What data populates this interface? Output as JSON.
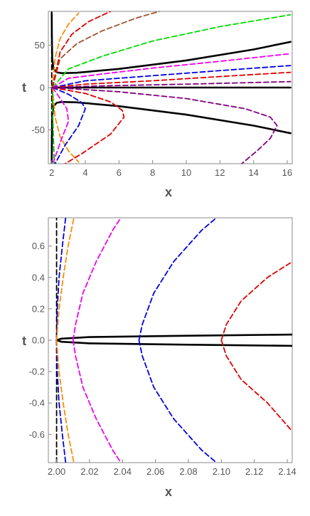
{
  "chart_data": [
    {
      "type": "line",
      "xlabel": "x",
      "ylabel": "t",
      "xlim": [
        1.8,
        16.3
      ],
      "ylim": [
        -90,
        90
      ],
      "xticks": [
        2,
        4,
        6,
        8,
        10,
        12,
        14,
        16
      ],
      "yticks": [
        -50,
        0,
        50
      ],
      "grid": false,
      "series": [
        {
          "color": "#000000",
          "style": "solid",
          "points": [
            [
              2.0,
              88
            ],
            [
              2.01,
              60
            ],
            [
              2.03,
              35
            ],
            [
              2.1,
              22
            ],
            [
              2.3,
              18
            ],
            [
              2.6,
              17
            ],
            [
              3.5,
              17.5
            ],
            [
              6,
              22
            ],
            [
              10,
              32
            ],
            [
              14,
              45
            ],
            [
              16.2,
              54
            ]
          ]
        },
        {
          "color": "#000000",
          "style": "solid",
          "points": [
            [
              2.0,
              -88
            ],
            [
              2.01,
              -60
            ],
            [
              2.03,
              -35
            ],
            [
              2.1,
              -22
            ],
            [
              2.3,
              -18
            ],
            [
              2.6,
              -17
            ],
            [
              3.5,
              -17.5
            ],
            [
              6,
              -22
            ],
            [
              10,
              -32
            ],
            [
              14,
              -45
            ],
            [
              16.2,
              -54
            ]
          ]
        },
        {
          "color": "#000000",
          "style": "solid",
          "points": [
            [
              2.0,
              0
            ],
            [
              16.2,
              0
            ]
          ]
        },
        {
          "color": "#000000",
          "style": "dashed",
          "points": [
            [
              2.0,
              -90
            ],
            [
              2.0,
              90
            ]
          ]
        },
        {
          "color": "#ff8c00",
          "style": "dashed",
          "points": [
            [
              2.05,
              0
            ],
            [
              2.2,
              35
            ],
            [
              2.5,
              58
            ],
            [
              3,
              75
            ],
            [
              3.6,
              88
            ]
          ]
        },
        {
          "color": "#a0522d",
          "style": "dashed",
          "points": [
            [
              2.05,
              0
            ],
            [
              2.5,
              34
            ],
            [
              3.5,
              52
            ],
            [
              5,
              67
            ],
            [
              7,
              82
            ],
            [
              8.4,
              90
            ]
          ]
        },
        {
          "color": "#dd0000",
          "style": "dashed",
          "points": [
            [
              2.05,
              0
            ],
            [
              2.5,
              42
            ],
            [
              3.2,
              63
            ],
            [
              4.2,
              78
            ],
            [
              5.5,
              90
            ]
          ]
        },
        {
          "color": "#00dd00",
          "style": "dashed",
          "points": [
            [
              2.05,
              0
            ],
            [
              3,
              22
            ],
            [
              5,
              37
            ],
            [
              8,
              55
            ],
            [
              12,
              72
            ],
            [
              16.2,
              86
            ]
          ]
        },
        {
          "color": "#ee00ee",
          "style": "dashed",
          "points": [
            [
              2.05,
              0
            ],
            [
              3,
              11
            ],
            [
              5,
              16
            ],
            [
              8,
              23
            ],
            [
              12,
              31
            ],
            [
              16.2,
              40
            ]
          ]
        },
        {
          "color": "#0000dd",
          "style": "dashed",
          "points": [
            [
              2.05,
              0
            ],
            [
              4,
              8
            ],
            [
              8,
              14
            ],
            [
              12,
              20
            ],
            [
              16.2,
              26
            ]
          ]
        },
        {
          "color": "#dd0000",
          "style": "dashed",
          "points": [
            [
              2.05,
              0
            ],
            [
              4,
              4
            ],
            [
              8,
              8
            ],
            [
              12,
              13
            ],
            [
              16.2,
              18
            ]
          ]
        },
        {
          "color": "#800080",
          "style": "dashed",
          "points": [
            [
              2.05,
              0
            ],
            [
              5,
              2
            ],
            [
              10,
              4
            ],
            [
              16.2,
              7
            ]
          ]
        },
        {
          "color": "#ff8c00",
          "style": "dashed",
          "points": [
            [
              2.05,
              0
            ],
            [
              2.2,
              -35
            ],
            [
              2.5,
              -58
            ],
            [
              3,
              -75
            ],
            [
              3.6,
              -88
            ]
          ]
        },
        {
          "color": "#00aa00",
          "style": "dashed",
          "points": [
            [
              2.05,
              -5
            ],
            [
              2.05,
              -30
            ],
            [
              2.1,
              -60
            ],
            [
              2.15,
              -90
            ]
          ]
        },
        {
          "color": "#ee00ee",
          "style": "dashed",
          "points": [
            [
              2.05,
              0
            ],
            [
              2.4,
              -10
            ],
            [
              2.9,
              -25
            ],
            [
              3,
              -40
            ],
            [
              2.6,
              -60
            ],
            [
              2.1,
              -88
            ]
          ]
        },
        {
          "color": "#0000dd",
          "style": "dashed",
          "points": [
            [
              2.05,
              0
            ],
            [
              3,
              -8
            ],
            [
              3.8,
              -18
            ],
            [
              4,
              -25
            ],
            [
              3.6,
              -45
            ],
            [
              2.8,
              -68
            ],
            [
              2.2,
              -90
            ]
          ]
        },
        {
          "color": "#dd0000",
          "style": "dashed",
          "points": [
            [
              2.05,
              0
            ],
            [
              4,
              -7
            ],
            [
              5.5,
              -17
            ],
            [
              6.2,
              -27
            ],
            [
              6.3,
              -35
            ],
            [
              5.5,
              -55
            ],
            [
              3.8,
              -78
            ],
            [
              2.8,
              -90
            ]
          ]
        },
        {
          "color": "#800080",
          "style": "dashed",
          "points": [
            [
              2.05,
              0
            ],
            [
              6,
              -5
            ],
            [
              10,
              -13
            ],
            [
              13.5,
              -25
            ],
            [
              15,
              -35
            ],
            [
              15.4,
              -45
            ],
            [
              15,
              -60
            ],
            [
              14.2,
              -75
            ],
            [
              13.3,
              -90
            ]
          ]
        }
      ]
    },
    {
      "type": "line",
      "xlabel": "x",
      "ylabel": "t",
      "xlim": [
        1.995,
        2.143
      ],
      "ylim": [
        -0.78,
        0.78
      ],
      "xticks": [
        2.0,
        2.02,
        2.04,
        2.06,
        2.08,
        2.1,
        2.12,
        2.14
      ],
      "yticks": [
        -0.6,
        -0.4,
        -0.2,
        0.0,
        0.2,
        0.4,
        0.6
      ],
      "grid": false,
      "series": [
        {
          "color": "#000000",
          "style": "dashed",
          "points": [
            [
              2.0,
              -0.78
            ],
            [
              2.0,
              0.78
            ]
          ]
        },
        {
          "color": "#000000",
          "style": "solid",
          "points": [
            [
              2.0,
              0.0
            ],
            [
              2.003,
              0.01
            ],
            [
              2.02,
              0.02
            ],
            [
              2.06,
              0.026
            ],
            [
              2.1,
              0.031
            ],
            [
              2.143,
              0.036
            ]
          ]
        },
        {
          "color": "#000000",
          "style": "solid",
          "points": [
            [
              2.0,
              0.0
            ],
            [
              2.003,
              -0.01
            ],
            [
              2.02,
              -0.02
            ],
            [
              2.06,
              -0.026
            ],
            [
              2.1,
              -0.031
            ],
            [
              2.143,
              -0.036
            ]
          ]
        },
        {
          "color": "#0000dd",
          "style": "dashed",
          "points": [
            [
              2.0,
              0.0
            ],
            [
              2.0004,
              0.2
            ],
            [
              2.0015,
              0.4
            ],
            [
              2.0035,
              0.6
            ],
            [
              2.0055,
              0.78
            ]
          ]
        },
        {
          "color": "#ff8c00",
          "style": "dashed",
          "points": [
            [
              2.0,
              0.0
            ],
            [
              2.0015,
              0.2
            ],
            [
              2.004,
              0.4
            ],
            [
              2.007,
              0.6
            ],
            [
              2.0105,
              0.78
            ]
          ]
        },
        {
          "color": "#ee00ee",
          "style": "dashed",
          "points": [
            [
              2.01,
              0.0
            ],
            [
              2.0115,
              0.1
            ],
            [
              2.016,
              0.3
            ],
            [
              2.024,
              0.5
            ],
            [
              2.034,
              0.7
            ],
            [
              2.039,
              0.78
            ]
          ]
        },
        {
          "color": "#0000dd",
          "style": "dashed",
          "points": [
            [
              2.05,
              0.0
            ],
            [
              2.052,
              0.1
            ],
            [
              2.059,
              0.3
            ],
            [
              2.071,
              0.5
            ],
            [
              2.088,
              0.7
            ],
            [
              2.097,
              0.78
            ]
          ]
        },
        {
          "color": "#dd0000",
          "style": "dashed",
          "points": [
            [
              2.1,
              0.0
            ],
            [
              2.103,
              0.1
            ],
            [
              2.112,
              0.25
            ],
            [
              2.128,
              0.4
            ],
            [
              2.143,
              0.5
            ]
          ]
        },
        {
          "color": "#0000dd",
          "style": "dashed",
          "points": [
            [
              2.0,
              0.0
            ],
            [
              2.0004,
              -0.2
            ],
            [
              2.0015,
              -0.4
            ],
            [
              2.0035,
              -0.6
            ],
            [
              2.0055,
              -0.78
            ]
          ]
        },
        {
          "color": "#ff8c00",
          "style": "dashed",
          "points": [
            [
              2.0,
              0.0
            ],
            [
              2.0015,
              -0.2
            ],
            [
              2.004,
              -0.4
            ],
            [
              2.007,
              -0.6
            ],
            [
              2.0105,
              -0.78
            ]
          ]
        },
        {
          "color": "#ee00ee",
          "style": "dashed",
          "points": [
            [
              2.01,
              0.0
            ],
            [
              2.0115,
              -0.1
            ],
            [
              2.016,
              -0.3
            ],
            [
              2.024,
              -0.5
            ],
            [
              2.034,
              -0.7
            ],
            [
              2.039,
              -0.78
            ]
          ]
        },
        {
          "color": "#0000dd",
          "style": "dashed",
          "points": [
            [
              2.05,
              0.0
            ],
            [
              2.052,
              -0.1
            ],
            [
              2.059,
              -0.3
            ],
            [
              2.071,
              -0.5
            ],
            [
              2.088,
              -0.7
            ],
            [
              2.097,
              -0.78
            ]
          ]
        },
        {
          "color": "#dd0000",
          "style": "dashed",
          "points": [
            [
              2.1,
              0.0
            ],
            [
              2.103,
              -0.1
            ],
            [
              2.112,
              -0.25
            ],
            [
              2.128,
              -0.4
            ],
            [
              2.143,
              -0.58
            ]
          ]
        }
      ]
    }
  ]
}
